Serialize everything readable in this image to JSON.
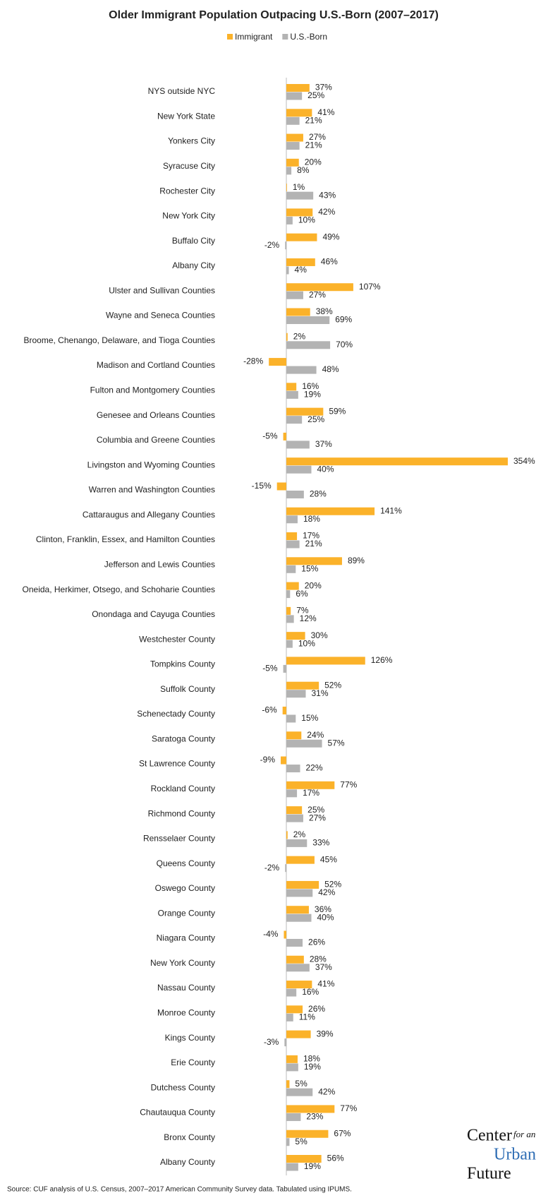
{
  "chart_data": {
    "type": "hbar",
    "title": "Older Immigrant Population Outpacing U.S.-Born (2007–2017)",
    "categories": [
      "NYS outside NYC",
      "New York State",
      "Yonkers City",
      "Syracuse City",
      "Rochester City",
      "New York City",
      "Buffalo City",
      "Albany City",
      "Ulster and Sullivan Counties",
      "Wayne and Seneca Counties",
      "Broome, Chenango, Delaware, and Tioga Counties",
      "Madison and Cortland Counties",
      "Fulton and Montgomery Counties",
      "Genesee and Orleans Counties",
      "Columbia and Greene Counties",
      "Livingston and Wyoming Counties",
      "Warren and Washington Counties",
      "Cattaraugus and Allegany Counties",
      "Clinton, Franklin, Essex, and Hamilton Counties",
      "Jefferson and Lewis Counties",
      "Oneida, Herkimer, Otsego, and Schoharie Counties",
      "Onondaga and Cayuga Counties",
      "Westchester County",
      "Tompkins County",
      "Suffolk County",
      "Schenectady County",
      "Saratoga County",
      "St Lawrence County",
      "Rockland County",
      "Richmond County",
      "Rensselaer County",
      "Queens County",
      "Oswego County",
      "Orange County",
      "Niagara County",
      "New York County",
      "Nassau County",
      "Monroe County",
      "Kings County",
      "Erie County",
      "Dutchess County",
      "Chautauqua County",
      "Bronx County",
      "Albany County"
    ],
    "series": [
      {
        "name": "Immigrant",
        "color": "#fbb22a",
        "values": [
          37,
          41,
          27,
          20,
          1,
          42,
          49,
          46,
          107,
          38,
          2,
          -28,
          16,
          59,
          -5,
          354,
          -15,
          141,
          17,
          89,
          20,
          7,
          30,
          126,
          52,
          -6,
          24,
          -9,
          77,
          25,
          2,
          45,
          52,
          36,
          -4,
          28,
          41,
          26,
          39,
          18,
          5,
          77,
          67,
          56
        ],
        "value_labels": [
          "37%",
          "41%",
          "27%",
          "20%",
          "1%",
          "42%",
          "49%",
          "46%",
          "107%",
          "38%",
          "2%",
          "-28%",
          "16%",
          "59%",
          "-5%",
          "354%",
          "-15%",
          "141%",
          "17%",
          "89%",
          "20%",
          "7%",
          "30%",
          "126%",
          "52%",
          "-6%",
          "24%",
          "-9%",
          "77%",
          "25%",
          "2%",
          "45%",
          "52%",
          "36%",
          "-4%",
          "28%",
          "41%",
          "26%",
          "39%",
          "18%",
          "5%",
          "77%",
          "67%",
          "56%"
        ]
      },
      {
        "name": "U.S.-Born",
        "color": "#b3b3b3",
        "values": [
          25,
          21,
          21,
          8,
          43,
          10,
          -2,
          4,
          27,
          69,
          70,
          48,
          19,
          25,
          37,
          40,
          28,
          18,
          21,
          15,
          6,
          12,
          10,
          -5,
          31,
          15,
          57,
          22,
          17,
          27,
          33,
          -2,
          42,
          40,
          26,
          37,
          16,
          11,
          -3,
          19,
          42,
          23,
          5,
          19
        ],
        "value_labels": [
          "25%",
          "21%",
          "21%",
          "8%",
          "43%",
          "10%",
          "-2%",
          "4%",
          "27%",
          "69%",
          "70%",
          "48%",
          "19%",
          "25%",
          "37%",
          "40%",
          "28%",
          "18%",
          "21%",
          "15%",
          "6%",
          "12%",
          "10%",
          "-5%",
          "31%",
          "15%",
          "57%",
          "22%",
          "17%",
          "27%",
          "33%",
          "-2%",
          "42%",
          "40%",
          "26%",
          "37%",
          "16%",
          "11%",
          "-3%",
          "19%",
          "42%",
          "23%",
          "5%",
          "19%"
        ]
      }
    ],
    "legend": "top",
    "source": "Source: CUF analysis of U.S. Census, 2007–2017 American Community Survey data. Tabulated using IPUMS.",
    "logo": {
      "line1": "Center",
      "line1_small": "for an",
      "line2": "Urban",
      "line3": "Future"
    }
  }
}
